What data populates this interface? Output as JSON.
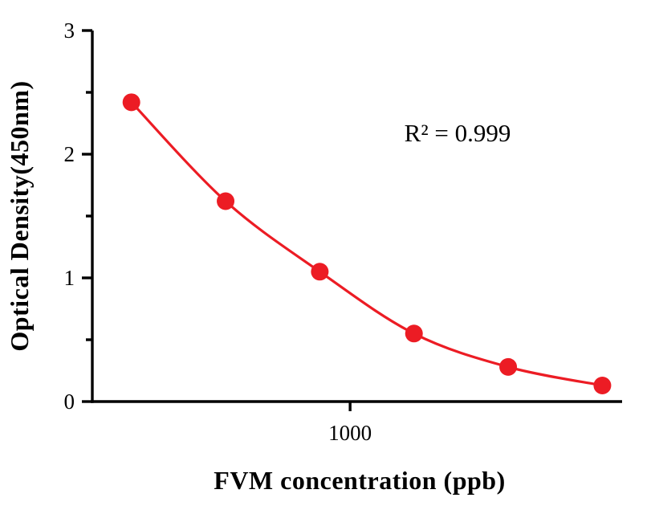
{
  "chart_data": {
    "type": "scatter",
    "x": [
      200,
      400,
      800,
      1600,
      3200,
      6400
    ],
    "y": [
      2.42,
      1.62,
      1.05,
      0.55,
      0.28,
      0.13
    ],
    "x_scale": "log",
    "x_domain": [
      150,
      7400
    ],
    "ylim": [
      0,
      3
    ],
    "y_major_ticks": [
      0,
      1,
      2,
      3
    ],
    "y_minor_ticks": [
      0.5,
      1.5,
      2.5
    ],
    "x_ticks": [
      {
        "value": 1000,
        "label": "1000"
      }
    ],
    "xlabel": "FVM concentration (ppb)",
    "ylabel": "Optical Density(450nm)",
    "annotation": "R² = 0.999",
    "series_color": "#ec1c24",
    "axis_color": "#000000",
    "marker": "circle",
    "marker_radius": 11,
    "line_width": 3.2,
    "grid": false,
    "legend": "none"
  }
}
